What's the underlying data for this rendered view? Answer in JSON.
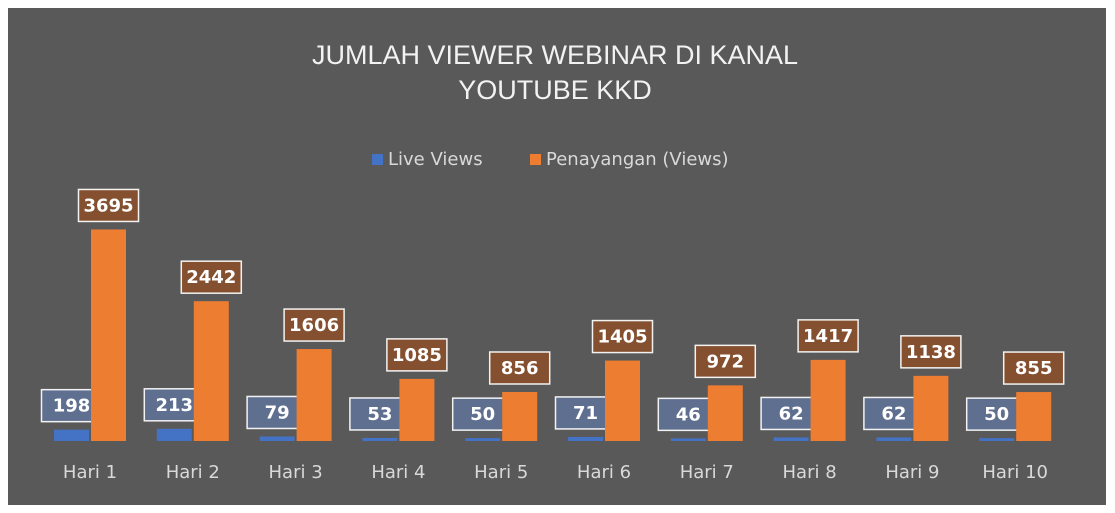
{
  "chart_data": {
    "type": "bar",
    "title": "JUMLAH VIEWER WEBINAR DI KANAL YOUTUBE KKD",
    "categories": [
      "Hari 1",
      "Hari 2",
      "Hari 3",
      "Hari 4",
      "Hari 5",
      "Hari 6",
      "Hari 7",
      "Hari 8",
      "Hari 9",
      "Hari 10"
    ],
    "series": [
      {
        "name": "Live Views",
        "color": "#4472c4",
        "values": [
          198,
          213,
          79,
          53,
          50,
          71,
          46,
          62,
          62,
          50
        ]
      },
      {
        "name": "Penayangan (Views)",
        "color": "#ed7d31",
        "values": [
          3695,
          2442,
          1606,
          1085,
          856,
          1405,
          972,
          1417,
          1138,
          855
        ]
      }
    ],
    "ylim": [
      0,
      4000
    ],
    "legend": "top"
  }
}
